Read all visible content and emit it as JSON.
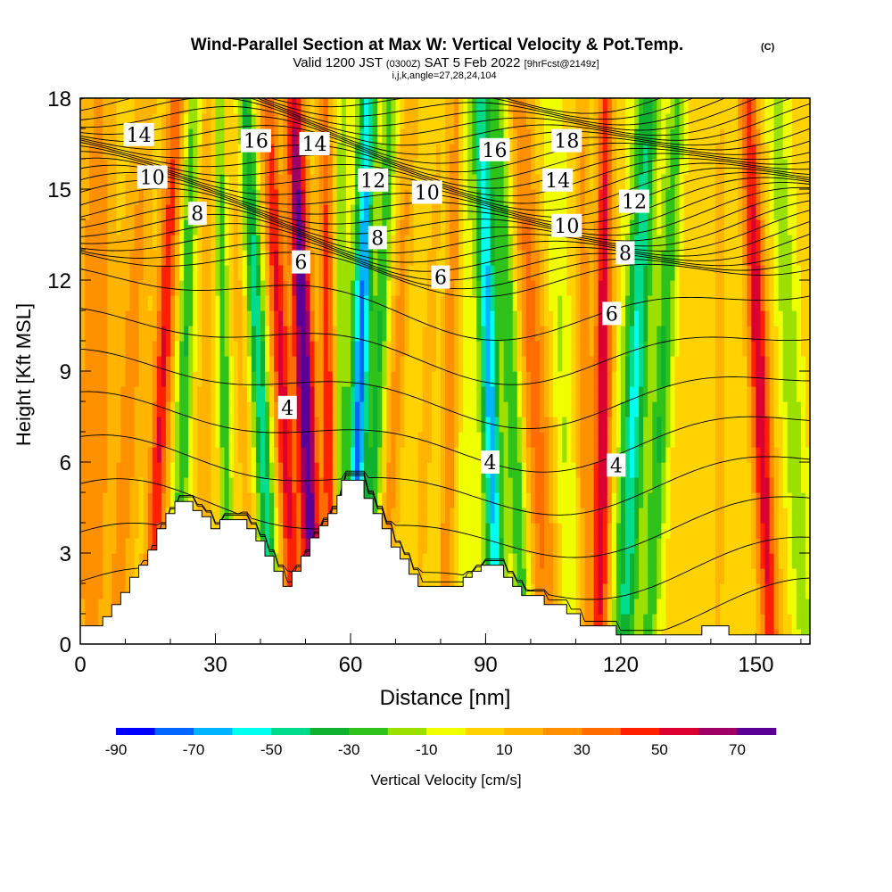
{
  "chart_data": {
    "type": "heatmap",
    "title": "Wind-Parallel Section at Max W: Vertical Velocity & Pot.Temp.",
    "title_mark": "(C)",
    "subtitle": {
      "valid": "Valid 1200 JST",
      "utc": "(0300Z)",
      "date": "SAT 5 Feb 2022",
      "fcst": "[9hrFcst@2149z]"
    },
    "params_line": "i,j,k,angle=27,28,24,104",
    "xlabel": "Distance [nm]",
    "ylabel": "Height [Kft MSL]",
    "xlim": [
      0,
      162
    ],
    "ylim": [
      0,
      18
    ],
    "x_ticks": [
      "0",
      "30",
      "60",
      "90",
      "120",
      "150"
    ],
    "y_ticks": [
      "0",
      "3",
      "6",
      "9",
      "12",
      "15",
      "18"
    ],
    "colorbar": {
      "label": "Vertical Velocity [cm/s]",
      "tick_labels": [
        "-90",
        "-70",
        "-50",
        "-30",
        "-10",
        "10",
        "30",
        "50",
        "70"
      ],
      "bounds": [
        -90,
        80
      ],
      "colors": [
        "#0000ff",
        "#0066ff",
        "#00b4ff",
        "#00ffee",
        "#00dc8c",
        "#10b030",
        "#2fc21a",
        "#9ce000",
        "#f0ff00",
        "#ffd200",
        "#ffb400",
        "#ff9000",
        "#ff6c00",
        "#ff2000",
        "#dc0030",
        "#a00064",
        "#5a0096"
      ]
    },
    "terrain_kft": [
      [
        0,
        0.6
      ],
      [
        1,
        0.6
      ],
      [
        2,
        0.6
      ],
      [
        3,
        0.6
      ],
      [
        4,
        0.6
      ],
      [
        5,
        0.9
      ],
      [
        6,
        0.9
      ],
      [
        7,
        1.3
      ],
      [
        8,
        1.3
      ],
      [
        9,
        1.7
      ],
      [
        10,
        1.7
      ],
      [
        11,
        2.2
      ],
      [
        12,
        2.2
      ],
      [
        13,
        2.6
      ],
      [
        14,
        2.6
      ],
      [
        15,
        3.1
      ],
      [
        16,
        3.1
      ],
      [
        17,
        3.8
      ],
      [
        18,
        3.8
      ],
      [
        19,
        4.3
      ],
      [
        20,
        4.3
      ],
      [
        21,
        4.7
      ],
      [
        22,
        4.7
      ],
      [
        23,
        4.7
      ],
      [
        24,
        4.7
      ],
      [
        25,
        4.4
      ],
      [
        26,
        4.4
      ],
      [
        27,
        4.2
      ],
      [
        28,
        4.2
      ],
      [
        29,
        3.8
      ],
      [
        30,
        3.8
      ],
      [
        31,
        4.1
      ],
      [
        32,
        4.1
      ],
      [
        33,
        4.1
      ],
      [
        34,
        4.1
      ],
      [
        35,
        4.1
      ],
      [
        36,
        4.1
      ],
      [
        37,
        3.8
      ],
      [
        38,
        3.8
      ],
      [
        39,
        3.4
      ],
      [
        40,
        3.4
      ],
      [
        41,
        2.9
      ],
      [
        42,
        2.9
      ],
      [
        43,
        2.4
      ],
      [
        44,
        2.4
      ],
      [
        45,
        1.9
      ],
      [
        46,
        1.9
      ],
      [
        47,
        2.4
      ],
      [
        48,
        2.4
      ],
      [
        49,
        2.9
      ],
      [
        50,
        2.9
      ],
      [
        51,
        3.5
      ],
      [
        52,
        3.5
      ],
      [
        53,
        3.9
      ],
      [
        54,
        3.9
      ],
      [
        55,
        4.3
      ],
      [
        56,
        4.3
      ],
      [
        57,
        4.9
      ],
      [
        58,
        5.4
      ],
      [
        59,
        5.4
      ],
      [
        60,
        5.4
      ],
      [
        61,
        5.4
      ],
      [
        62,
        5.4
      ],
      [
        63,
        4.8
      ],
      [
        64,
        4.8
      ],
      [
        65,
        4.3
      ],
      [
        66,
        4.3
      ],
      [
        67,
        3.8
      ],
      [
        68,
        3.8
      ],
      [
        69,
        3.2
      ],
      [
        70,
        3.2
      ],
      [
        71,
        2.8
      ],
      [
        72,
        2.8
      ],
      [
        73,
        2.3
      ],
      [
        74,
        2.3
      ],
      [
        75,
        1.9
      ],
      [
        76,
        1.9
      ],
      [
        77,
        1.9
      ],
      [
        78,
        1.9
      ],
      [
        79,
        1.9
      ],
      [
        80,
        1.9
      ],
      [
        81,
        1.9
      ],
      [
        82,
        1.9
      ],
      [
        83,
        1.9
      ],
      [
        84,
        1.9
      ],
      [
        85,
        2.2
      ],
      [
        86,
        2.2
      ],
      [
        87,
        2.4
      ],
      [
        88,
        2.4
      ],
      [
        89,
        2.6
      ],
      [
        90,
        2.6
      ],
      [
        91,
        2.6
      ],
      [
        92,
        2.6
      ],
      [
        93,
        2.6
      ],
      [
        94,
        2.2
      ],
      [
        95,
        2.2
      ],
      [
        96,
        1.9
      ],
      [
        97,
        1.9
      ],
      [
        98,
        1.6
      ],
      [
        99,
        1.6
      ],
      [
        100,
        1.6
      ],
      [
        101,
        1.6
      ],
      [
        102,
        1.6
      ],
      [
        103,
        1.3
      ],
      [
        104,
        1.3
      ],
      [
        105,
        1.3
      ],
      [
        106,
        1.3
      ],
      [
        107,
        1.3
      ],
      [
        108,
        1.0
      ],
      [
        109,
        1.0
      ],
      [
        110,
        1.0
      ],
      [
        111,
        0.6
      ],
      [
        112,
        0.6
      ],
      [
        113,
        0.6
      ],
      [
        114,
        0.6
      ],
      [
        115,
        0.6
      ],
      [
        116,
        0.6
      ],
      [
        117,
        0.6
      ],
      [
        118,
        0.6
      ],
      [
        119,
        0.3
      ],
      [
        120,
        0.3
      ],
      [
        121,
        0.3
      ],
      [
        122,
        0.3
      ],
      [
        123,
        0.3
      ],
      [
        124,
        0.3
      ],
      [
        125,
        0.3
      ],
      [
        126,
        0.3
      ],
      [
        127,
        0.3
      ],
      [
        128,
        0.3
      ],
      [
        129,
        0.3
      ],
      [
        130,
        0.3
      ],
      [
        131,
        0.3
      ],
      [
        132,
        0.3
      ],
      [
        133,
        0.3
      ],
      [
        134,
        0.3
      ],
      [
        135,
        0.3
      ],
      [
        136,
        0.3
      ],
      [
        137,
        0.3
      ],
      [
        138,
        0.6
      ],
      [
        139,
        0.6
      ],
      [
        140,
        0.6
      ],
      [
        141,
        0.6
      ],
      [
        142,
        0.6
      ],
      [
        143,
        0.6
      ],
      [
        144,
        0.3
      ],
      [
        145,
        0.3
      ],
      [
        146,
        0.3
      ],
      [
        147,
        0.3
      ],
      [
        148,
        0.3
      ],
      [
        149,
        0.3
      ],
      [
        150,
        0.3
      ],
      [
        151,
        0.3
      ],
      [
        152,
        0.3
      ],
      [
        153,
        0.3
      ],
      [
        154,
        0.3
      ],
      [
        155,
        0.3
      ],
      [
        156,
        0.3
      ],
      [
        157,
        0.3
      ],
      [
        158,
        0.3
      ],
      [
        159,
        0.3
      ],
      [
        160,
        0.3
      ],
      [
        161,
        0.3
      ],
      [
        162,
        0.3
      ]
    ],
    "updraft_bands": [
      {
        "x": 3,
        "w": 4,
        "peak": 25
      },
      {
        "x": 11,
        "w": 3,
        "peak": 20
      },
      {
        "x": 18,
        "w": 2,
        "peak": 45
      },
      {
        "x": 23,
        "w": 1.6,
        "peak": -30
      },
      {
        "x": 28,
        "w": 1.8,
        "peak": 15
      },
      {
        "x": 32,
        "w": 1.2,
        "peak": -30
      },
      {
        "x": 36,
        "w": 1.8,
        "peak": 10
      },
      {
        "x": 40,
        "w": 1.8,
        "peak": -45
      },
      {
        "x": 45,
        "w": 2.0,
        "peak": 48
      },
      {
        "x": 50,
        "w": 2.2,
        "peak": 74
      },
      {
        "x": 55,
        "w": 1.6,
        "peak": 40
      },
      {
        "x": 58,
        "w": 1.4,
        "peak": -20
      },
      {
        "x": 62,
        "w": 2.0,
        "peak": -70
      },
      {
        "x": 66,
        "w": 1.6,
        "peak": -30
      },
      {
        "x": 70,
        "w": 2.0,
        "peak": 20
      },
      {
        "x": 77,
        "w": 2.0,
        "peak": 10
      },
      {
        "x": 82,
        "w": 1.6,
        "peak": 25
      },
      {
        "x": 86,
        "w": 1.5,
        "peak": -10
      },
      {
        "x": 91,
        "w": 2.0,
        "peak": -62
      },
      {
        "x": 96,
        "w": 2.0,
        "peak": -30
      },
      {
        "x": 101,
        "w": 3.0,
        "peak": 30
      },
      {
        "x": 107,
        "w": 2.0,
        "peak": -12
      },
      {
        "x": 112,
        "w": 1.8,
        "peak": 22
      },
      {
        "x": 116,
        "w": 1.8,
        "peak": 55
      },
      {
        "x": 123,
        "w": 2.6,
        "peak": -50
      },
      {
        "x": 129,
        "w": 2.0,
        "peak": -30
      },
      {
        "x": 136,
        "w": 3.0,
        "peak": 5
      },
      {
        "x": 142,
        "w": 2.0,
        "peak": 10
      },
      {
        "x": 151,
        "w": 2.2,
        "peak": 52
      },
      {
        "x": 158,
        "w": 2.0,
        "peak": -20
      }
    ],
    "isentrope_labels": [
      {
        "text": "14",
        "x": 13,
        "y": 16.8
      },
      {
        "text": "10",
        "x": 16,
        "y": 15.4
      },
      {
        "text": "8",
        "x": 26,
        "y": 14.2
      },
      {
        "text": "16",
        "x": 39,
        "y": 16.6
      },
      {
        "text": "14",
        "x": 52,
        "y": 16.5
      },
      {
        "text": "12",
        "x": 65,
        "y": 15.3
      },
      {
        "text": "10",
        "x": 77,
        "y": 14.9
      },
      {
        "text": "8",
        "x": 66,
        "y": 13.4
      },
      {
        "text": "6",
        "x": 49,
        "y": 12.6
      },
      {
        "text": "6",
        "x": 80,
        "y": 12.1
      },
      {
        "text": "4",
        "x": 46,
        "y": 7.8
      },
      {
        "text": "4",
        "x": 91,
        "y": 6.0
      },
      {
        "text": "4",
        "x": 119,
        "y": 5.9
      },
      {
        "text": "16",
        "x": 92,
        "y": 16.3
      },
      {
        "text": "18",
        "x": 108,
        "y": 16.6
      },
      {
        "text": "14",
        "x": 106,
        "y": 15.3
      },
      {
        "text": "12",
        "x": 123,
        "y": 14.6
      },
      {
        "text": "10",
        "x": 108,
        "y": 13.8
      },
      {
        "text": "8",
        "x": 121,
        "y": 12.9
      },
      {
        "text": "6",
        "x": 118,
        "y": 10.9
      }
    ]
  }
}
